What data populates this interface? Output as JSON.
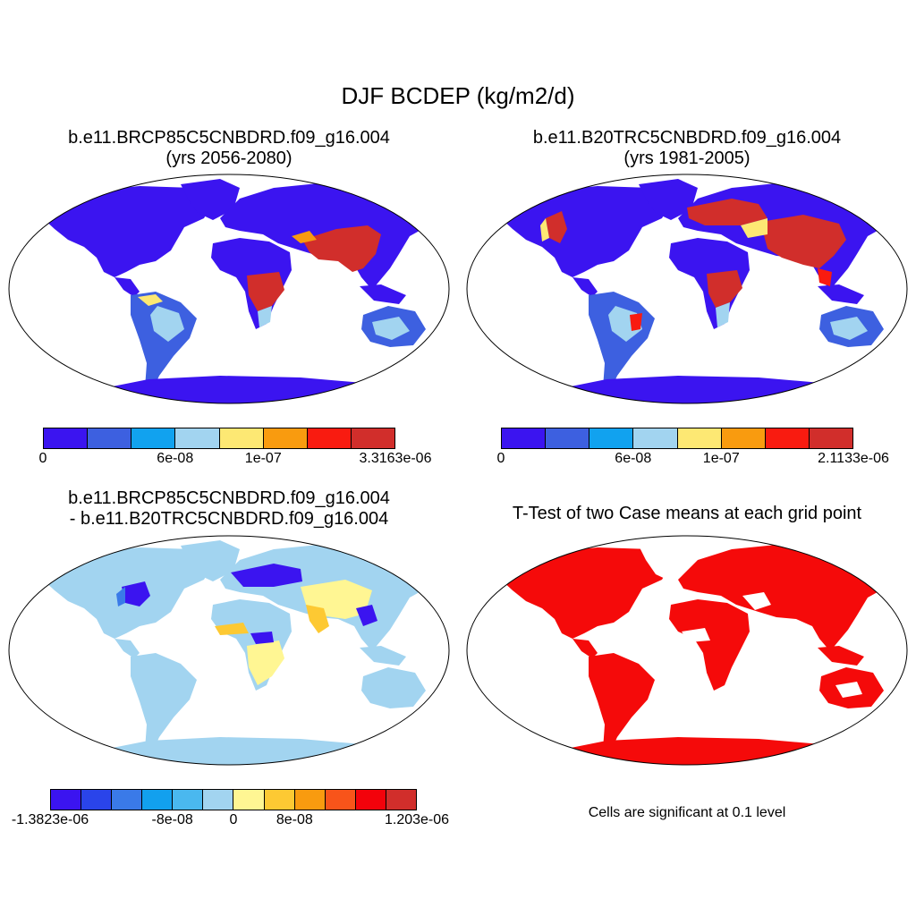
{
  "figure": {
    "title": "DJF BCDEP (kg/m2/d)"
  },
  "panels": [
    {
      "title_line1": "b.e11.BRCP85C5CNBDRD.f09_g16.004",
      "title_line2": "(yrs 2056-2080)",
      "colorbar": {
        "colors": [
          "#3b14f0",
          "#3d60e0",
          "#11a2ef",
          "#a2d4f0",
          "#fde873",
          "#f99b0f",
          "#f91b10",
          "#d12e2b"
        ],
        "tick_labels": [
          "0",
          "6e-08",
          "1e-07",
          "3.3163e-06"
        ]
      }
    },
    {
      "title_line1": "b.e11.B20TRC5CNBDRD.f09_g16.004",
      "title_line2": "(yrs 1981-2005)",
      "colorbar": {
        "colors": [
          "#3b14f0",
          "#3d60e0",
          "#11a2ef",
          "#a2d4f0",
          "#fde873",
          "#f99b0f",
          "#f91b10",
          "#d12e2b"
        ],
        "tick_labels": [
          "0",
          "6e-08",
          "1e-07",
          "2.1133e-06"
        ]
      }
    },
    {
      "title_line1": "b.e11.BRCP85C5CNBDRD.f09_g16.004",
      "title_line2": "- b.e11.B20TRC5CNBDRD.f09_g16.004",
      "colorbar": {
        "colors": [
          "#3b14f0",
          "#2a44ea",
          "#3a7ae8",
          "#12a0ee",
          "#4ab8ef",
          "#a2d4f0",
          "#fff693",
          "#fdc933",
          "#f99b0f",
          "#f8541a",
          "#f3020b",
          "#d12e2b"
        ],
        "tick_labels": [
          "-1.3823e-06",
          "-8e-08",
          "0",
          "8e-08",
          "1.203e-06"
        ]
      }
    },
    {
      "title_line1": "T-Test of two Case means at each grid point",
      "note": "Cells are significant at 0.1 level"
    }
  ],
  "legend_colors": {
    "ocean": "#ffffff",
    "significant": "#f50a0a"
  }
}
